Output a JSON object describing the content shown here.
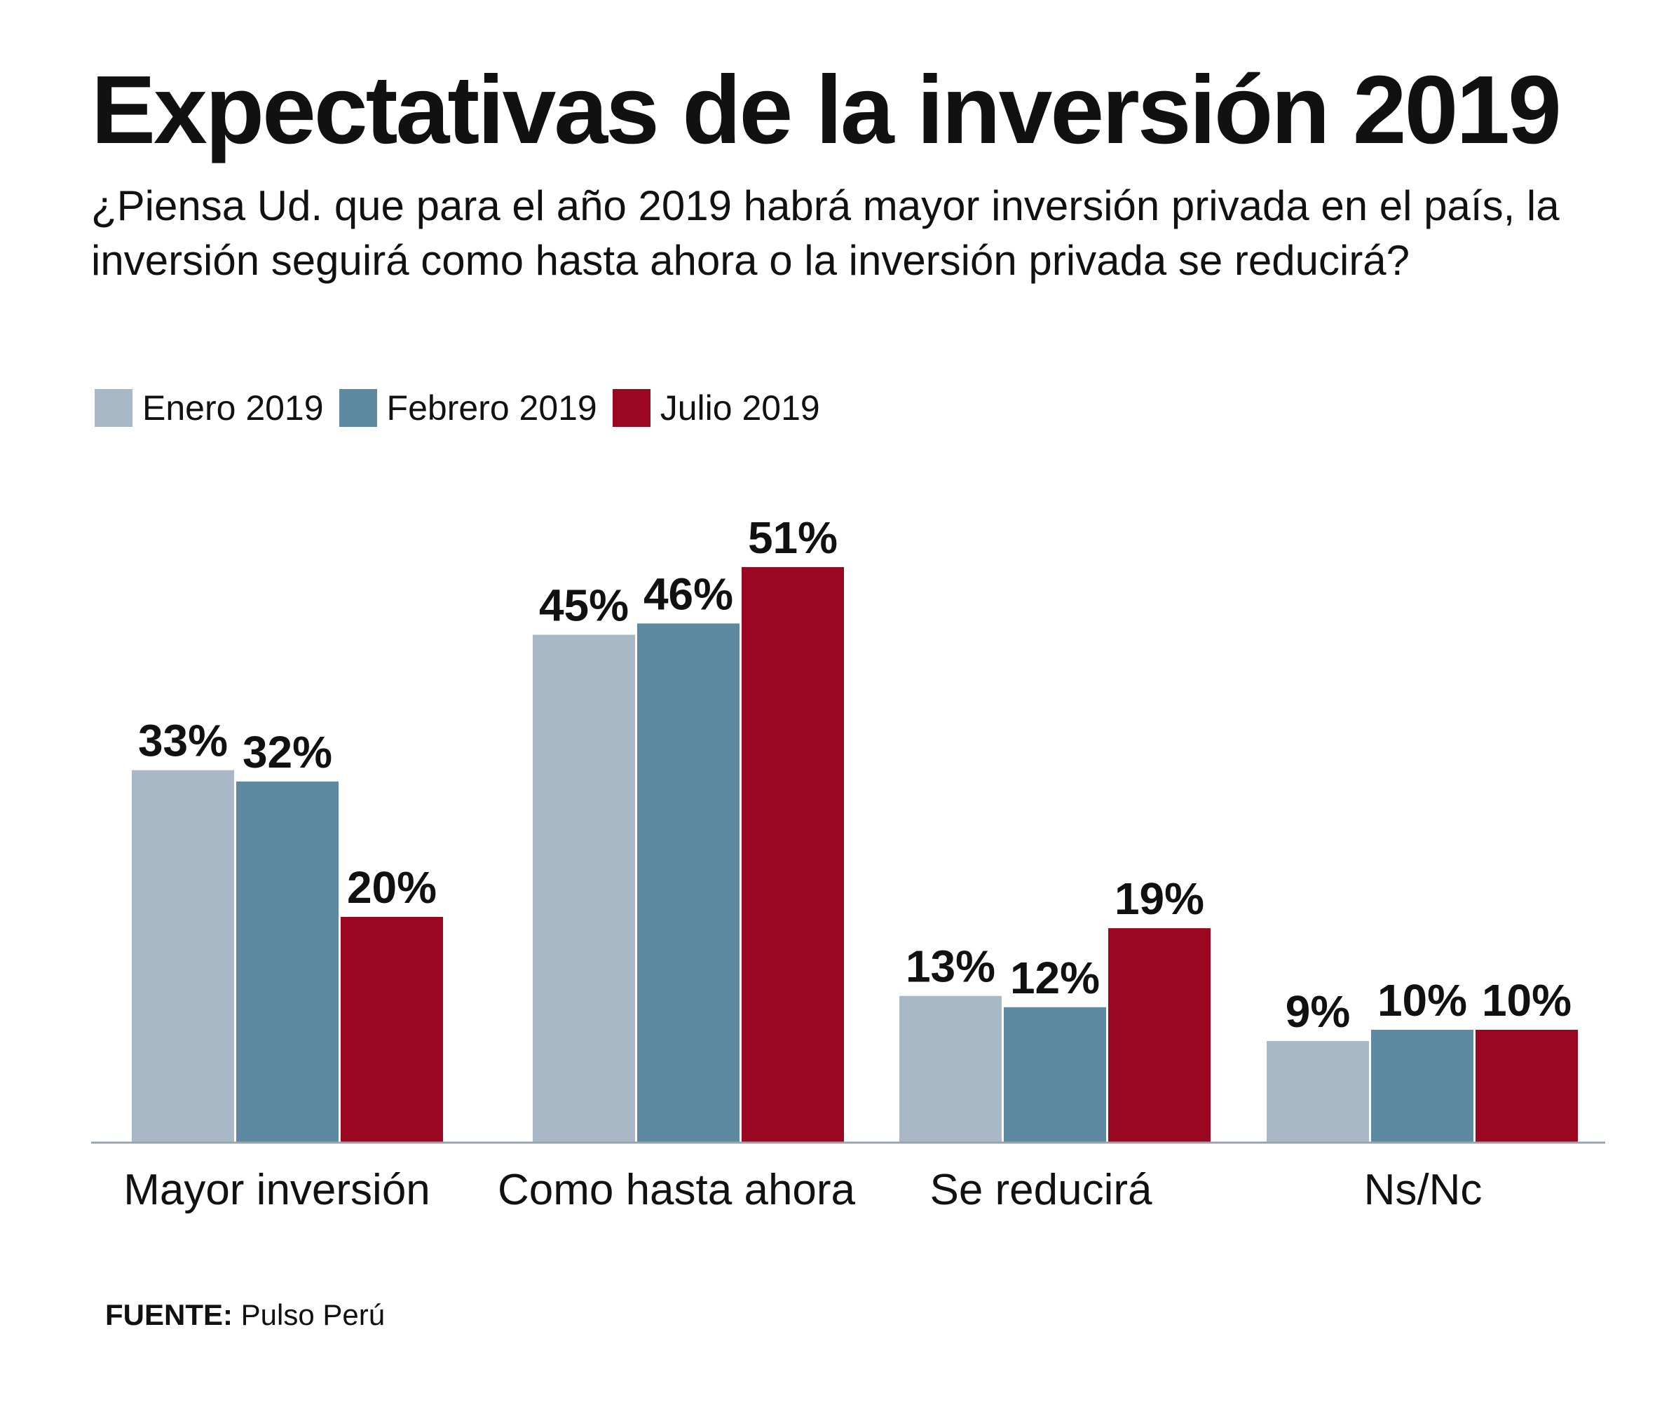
{
  "title": "Expectativas de la inversión 2019",
  "subtitle": "¿Piensa Ud. que para el año 2019 habrá mayor inversión privada en el país, la inversión seguirá como hasta ahora o la inversión privada se reducirá?",
  "source": {
    "label": "FUENTE:",
    "text": "Pulso Perú"
  },
  "chart_data": {
    "type": "bar",
    "title": "Expectativas de la inversión 2019",
    "xlabel": "",
    "ylabel": "",
    "ylim": [
      0,
      55
    ],
    "grid": false,
    "legend_position": "top-left",
    "categories": [
      "Mayor inversión",
      "Como hasta ahora",
      "Se reducirá",
      "Ns/Nc"
    ],
    "series": [
      {
        "name": "Enero 2019",
        "color": "#a9b8c6",
        "values": [
          33,
          45,
          13,
          9
        ]
      },
      {
        "name": "Febrero 2019",
        "color": "#5d89a1",
        "values": [
          32,
          46,
          12,
          10
        ]
      },
      {
        "name": "Julio 2019",
        "color": "#9b0620",
        "values": [
          20,
          51,
          19,
          10
        ]
      }
    ],
    "value_suffix": "%"
  }
}
